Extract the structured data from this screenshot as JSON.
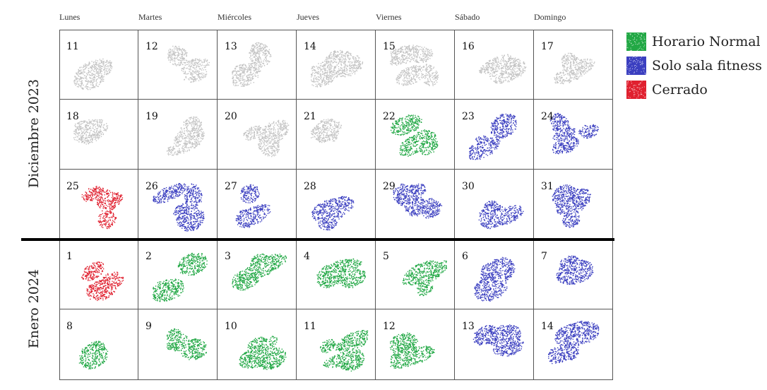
{
  "day_names": [
    "Lunes",
    "Martes",
    "Miércoles",
    "Jueves",
    "Viernes",
    "Sábado",
    "Domingo"
  ],
  "months": [
    {
      "label": "Diciembre 2023"
    },
    {
      "label": "Enero 2024"
    }
  ],
  "legend": [
    {
      "status": "normal",
      "label": "Horario Normal"
    },
    {
      "status": "fitness",
      "label": "Solo sala fitness"
    },
    {
      "status": "closed",
      "label": "Cerrado"
    }
  ],
  "colors": {
    "past": "#c4c4c4",
    "normal": "#22a845",
    "fitness": "#3b3fc0",
    "closed": "#e0202f"
  },
  "weeks": [
    {
      "month": "Diciembre 2023",
      "days": [
        {
          "day": "11",
          "status": "past"
        },
        {
          "day": "12",
          "status": "past"
        },
        {
          "day": "13",
          "status": "past"
        },
        {
          "day": "14",
          "status": "past"
        },
        {
          "day": "15",
          "status": "past"
        },
        {
          "day": "16",
          "status": "past"
        },
        {
          "day": "17",
          "status": "past"
        }
      ]
    },
    {
      "month": "Diciembre 2023",
      "days": [
        {
          "day": "18",
          "status": "past"
        },
        {
          "day": "19",
          "status": "past"
        },
        {
          "day": "20",
          "status": "past"
        },
        {
          "day": "21",
          "status": "past"
        },
        {
          "day": "22",
          "status": "normal"
        },
        {
          "day": "23",
          "status": "fitness"
        },
        {
          "day": "24",
          "status": "fitness"
        }
      ]
    },
    {
      "month": "Diciembre 2023",
      "days": [
        {
          "day": "25",
          "status": "closed"
        },
        {
          "day": "26",
          "status": "fitness"
        },
        {
          "day": "27",
          "status": "fitness"
        },
        {
          "day": "28",
          "status": "fitness"
        },
        {
          "day": "29",
          "status": "fitness"
        },
        {
          "day": "30",
          "status": "fitness"
        },
        {
          "day": "31",
          "status": "fitness"
        }
      ]
    },
    {
      "month": "Enero 2024",
      "days": [
        {
          "day": "1",
          "status": "closed"
        },
        {
          "day": "2",
          "status": "normal"
        },
        {
          "day": "3",
          "status": "normal"
        },
        {
          "day": "4",
          "status": "normal"
        },
        {
          "day": "5",
          "status": "normal"
        },
        {
          "day": "6",
          "status": "fitness"
        },
        {
          "day": "7",
          "status": "fitness"
        }
      ]
    },
    {
      "month": "Enero 2024",
      "days": [
        {
          "day": "8",
          "status": "normal"
        },
        {
          "day": "9",
          "status": "normal"
        },
        {
          "day": "10",
          "status": "normal"
        },
        {
          "day": "11",
          "status": "normal"
        },
        {
          "day": "12",
          "status": "normal"
        },
        {
          "day": "13",
          "status": "fitness"
        },
        {
          "day": "14",
          "status": "fitness"
        }
      ]
    }
  ]
}
